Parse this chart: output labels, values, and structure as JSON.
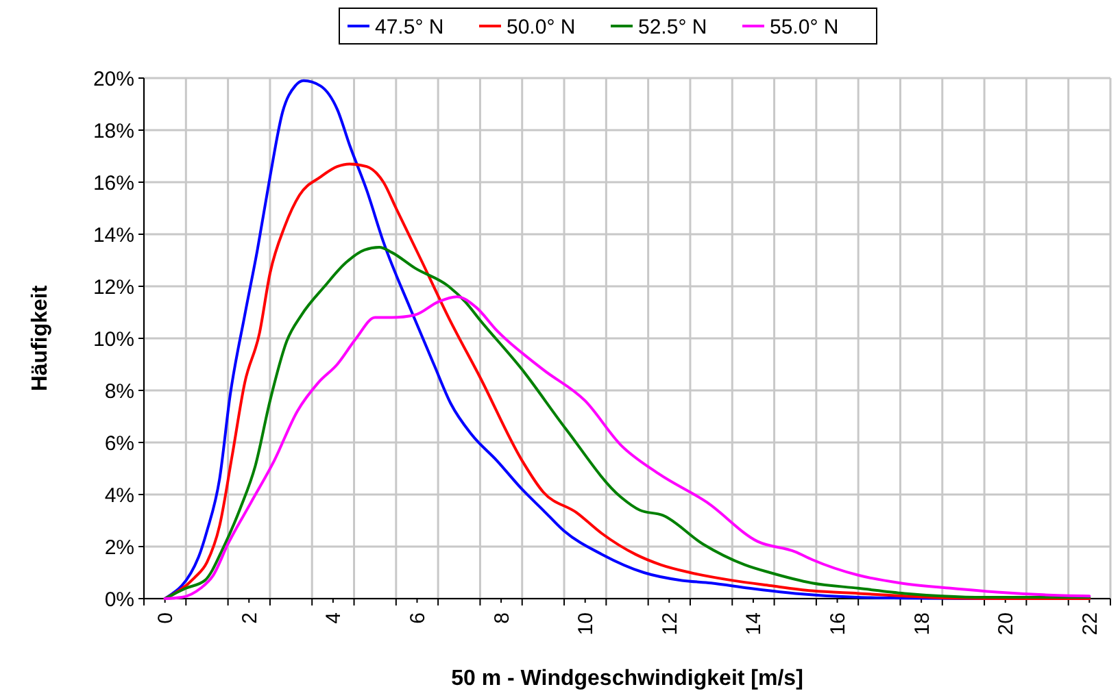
{
  "chart_data": {
    "type": "line",
    "xlabel": "50 m - Windgeschwindigkeit [m/s]",
    "ylabel": "Häufigkeit",
    "xlim": [
      -0.5,
      22.5
    ],
    "xticks": [
      {
        "value": -0.5,
        "label": null
      },
      0,
      {
        "value": 0.5,
        "label": null
      },
      {
        "value": 1.5,
        "label": null
      },
      2,
      {
        "value": 2.5,
        "label": null
      },
      {
        "value": 3.5,
        "label": null
      },
      4,
      {
        "value": 4.5,
        "label": null
      },
      {
        "value": 5.5,
        "label": null
      },
      6,
      {
        "value": 6.5,
        "label": null
      },
      {
        "value": 7.5,
        "label": null
      },
      8,
      {
        "value": 8.5,
        "label": null
      },
      {
        "value": 9.5,
        "label": null
      },
      10,
      {
        "value": 10.5,
        "label": null
      },
      {
        "value": 11.5,
        "label": null
      },
      12,
      {
        "value": 12.5,
        "label": null
      },
      {
        "value": 13.5,
        "label": null
      },
      14,
      {
        "value": 14.5,
        "label": null
      },
      {
        "value": 15.5,
        "label": null
      },
      16,
      {
        "value": 16.5,
        "label": null
      },
      {
        "value": 17.5,
        "label": null
      },
      18,
      {
        "value": 18.5,
        "label": null
      },
      {
        "value": 19.5,
        "label": null
      },
      20,
      {
        "value": 20.5,
        "label": null
      },
      {
        "value": 21.5,
        "label": null
      },
      22,
      {
        "value": 22.5,
        "label": null
      }
    ],
    "ylim": [
      0,
      20
    ],
    "yticks": [
      {
        "value": 0,
        "label": "0%"
      },
      {
        "value": 2,
        "label": "2%"
      },
      {
        "value": 4,
        "label": "4%"
      },
      {
        "value": 6,
        "label": "6%"
      },
      {
        "value": 8,
        "label": "8%"
      },
      {
        "value": 10,
        "label": "10%"
      },
      {
        "value": 12,
        "label": "12%"
      },
      {
        "value": 14,
        "label": "14%"
      },
      {
        "value": 16,
        "label": "16%"
      },
      {
        "value": 18,
        "label": "18%"
      },
      {
        "value": 20,
        "label": "20%"
      }
    ],
    "grid": true,
    "legend": "top",
    "marker": "none",
    "line_style": "solid",
    "series": [
      {
        "name": "47.5° N",
        "color": "#0000ff",
        "x": [
          0,
          0.8,
          1.0,
          1.3,
          1.55,
          1.9,
          2.2,
          2.5,
          2.8,
          3.1,
          3.3,
          3.7,
          4.1,
          4.4,
          4.8,
          5.2,
          5.85,
          6.4,
          6.8,
          7.3,
          7.9,
          8.5,
          9.0,
          9.5,
          10.4,
          11.4,
          12.3,
          13.0,
          13.9,
          15.0,
          16.5,
          17.6,
          19,
          22
        ],
        "values": [
          0,
          1.6,
          2.6,
          4.6,
          7.8,
          10.9,
          13.4,
          16.2,
          18.7,
          19.7,
          19.9,
          19.7,
          18.8,
          17.4,
          15.7,
          13.7,
          11.1,
          9.0,
          7.5,
          6.3,
          5.3,
          4.2,
          3.4,
          2.6,
          1.7,
          1.0,
          0.7,
          0.6,
          0.4,
          0.2,
          0.05,
          0.02,
          0,
          0
        ]
      },
      {
        "name": "50.0° N",
        "color": "#ff0000",
        "x": [
          0,
          0.7,
          1.0,
          1.3,
          1.6,
          1.9,
          2.25,
          2.5,
          2.85,
          3.2,
          3.7,
          4.1,
          4.4,
          4.8,
          5.2,
          5.5,
          6.1,
          6.75,
          7.5,
          8.5,
          9.0,
          9.8,
          10.4,
          11.2,
          11.8,
          12.5,
          13.5,
          14.4,
          15.4,
          16.5,
          17.6,
          18.7,
          20,
          22
        ],
        "values": [
          0,
          0.8,
          1.4,
          2.8,
          5.5,
          8.3,
          10.2,
          12.5,
          14.3,
          15.5,
          16.2,
          16.6,
          16.7,
          16.6,
          16.0,
          15.0,
          13.0,
          10.8,
          8.5,
          5.3,
          4.1,
          3.3,
          2.5,
          1.7,
          1.3,
          1.0,
          0.7,
          0.5,
          0.3,
          0.2,
          0.1,
          0.02,
          0,
          0
        ]
      },
      {
        "name": "52.5° N",
        "color": "#008000",
        "x": [
          0,
          0.5,
          0.95,
          1.4,
          1.8,
          2.15,
          2.5,
          2.9,
          3.25,
          3.8,
          4.3,
          4.75,
          5.1,
          5.4,
          5.95,
          6.75,
          7.15,
          7.5,
          8.5,
          9.55,
          10.85,
          11.3,
          11.85,
          12.8,
          13.8,
          14.4,
          15.4,
          16.5,
          17.6,
          18.5,
          19.5,
          22
        ],
        "values": [
          0,
          0.4,
          0.7,
          2.0,
          3.5,
          5.1,
          7.6,
          9.9,
          10.9,
          12.0,
          12.9,
          13.4,
          13.5,
          13.3,
          12.7,
          12.0,
          11.4,
          10.7,
          8.8,
          6.5,
          3.9,
          3.4,
          3.2,
          2.1,
          1.3,
          1.0,
          0.6,
          0.4,
          0.2,
          0.1,
          0.05,
          0.05
        ]
      },
      {
        "name": "55.0° N",
        "color": "#ff00ff",
        "x": [
          0,
          0.4,
          0.85,
          1.15,
          1.5,
          2.05,
          2.6,
          3.15,
          3.65,
          4.1,
          4.55,
          5.0,
          5.4,
          5.95,
          6.5,
          6.95,
          7.4,
          7.9,
          9.0,
          10.0,
          10.85,
          11.75,
          12.9,
          14.1,
          15.0,
          15.4,
          16.5,
          17.5,
          18.7,
          19.8,
          20.9,
          22
        ],
        "values": [
          0,
          0.05,
          0.4,
          0.9,
          2.1,
          3.7,
          5.3,
          7.2,
          8.3,
          9.0,
          10.0,
          10.8,
          10.8,
          10.9,
          11.4,
          11.6,
          11.2,
          10.3,
          8.8,
          7.6,
          5.9,
          4.8,
          3.7,
          2.2,
          1.8,
          1.5,
          0.9,
          0.6,
          0.4,
          0.25,
          0.15,
          0.1
        ]
      }
    ]
  }
}
